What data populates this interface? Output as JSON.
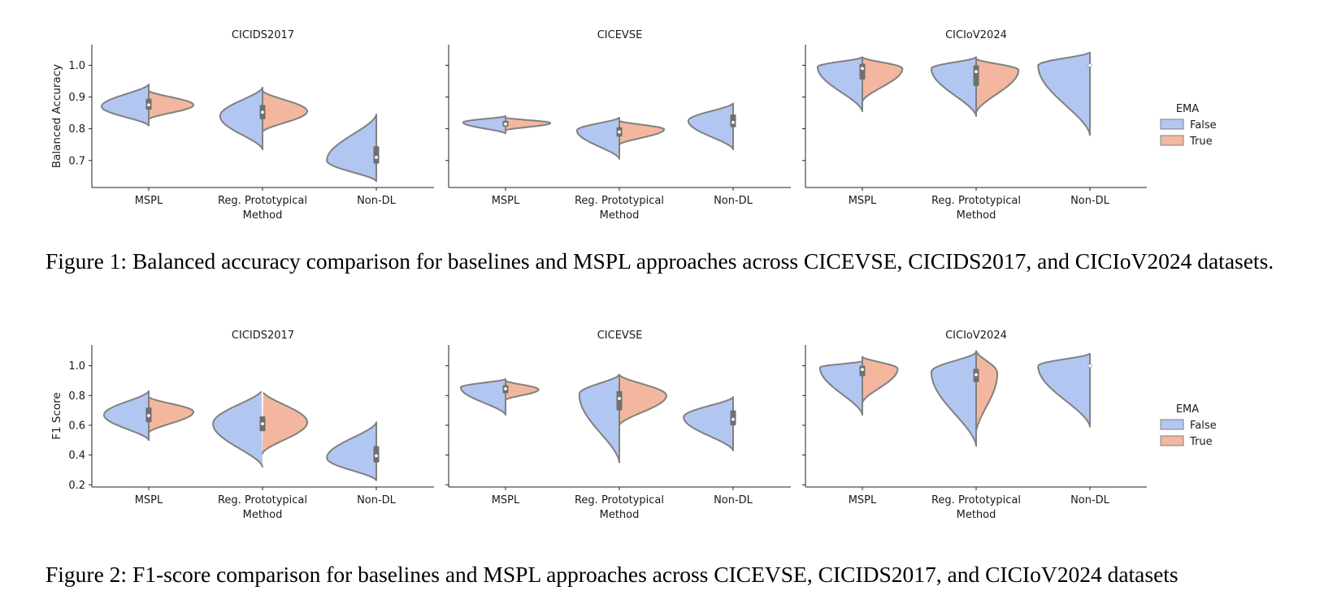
{
  "chart_data": [
    {
      "type": "violin",
      "split_by": "EMA",
      "ylabel": "Balanced Accuracy",
      "xlabel": "Method",
      "yticks": [
        "0.7",
        "0.8",
        "0.9",
        "1.0"
      ],
      "ylim": [
        0.615,
        1.065
      ],
      "legend": {
        "title": "EMA",
        "entries": [
          "False",
          "True"
        ],
        "placement": "right"
      },
      "colors": {
        "False": "#b2c6f2",
        "True": "#f2b79e",
        "edge": "#808080",
        "box": "#6f6f6f"
      },
      "categories": [
        "MSPL",
        "Reg. Prototypical",
        "Non-DL"
      ],
      "panels": [
        {
          "title": "CICIDS2017",
          "violins": [
            {
              "cat": 0,
              "False": {
                "min": 0.81,
                "max": 0.94,
                "mode": 0.87,
                "width": 1.0
              },
              "True": {
                "min": 0.83,
                "max": 0.92,
                "mode": 0.875,
                "width": 0.95
              },
              "q1": 0.86,
              "median": 0.875,
              "q3": 0.895
            },
            {
              "cat": 1,
              "False": {
                "min": 0.735,
                "max": 0.93,
                "mode": 0.84,
                "width": 0.9
              },
              "True": {
                "min": 0.79,
                "max": 0.92,
                "mode": 0.855,
                "width": 0.95
              },
              "q1": 0.83,
              "median": 0.852,
              "q3": 0.875
            },
            {
              "cat": 2,
              "False": {
                "min": 0.635,
                "max": 0.845,
                "mode": 0.7,
                "width": 1.05
              },
              "True": null,
              "q1": 0.69,
              "median": 0.71,
              "q3": 0.745
            }
          ]
        },
        {
          "title": "CICEVSE",
          "violins": [
            {
              "cat": 0,
              "False": {
                "min": 0.785,
                "max": 0.84,
                "mode": 0.82,
                "width": 0.9
              },
              "True": {
                "min": 0.795,
                "max": 0.835,
                "mode": 0.818,
                "width": 0.95
              },
              "q1": 0.807,
              "median": 0.815,
              "q3": 0.825
            },
            {
              "cat": 1,
              "False": {
                "min": 0.705,
                "max": 0.835,
                "mode": 0.795,
                "width": 0.9
              },
              "True": {
                "min": 0.75,
                "max": 0.825,
                "mode": 0.798,
                "width": 0.95
              },
              "q1": 0.775,
              "median": 0.79,
              "q3": 0.805
            },
            {
              "cat": 2,
              "False": {
                "min": 0.735,
                "max": 0.88,
                "mode": 0.825,
                "width": 0.95
              },
              "True": null,
              "q1": 0.805,
              "median": 0.82,
              "q3": 0.845
            }
          ]
        },
        {
          "title": "CICIoV2024",
          "violins": [
            {
              "cat": 0,
              "False": {
                "min": 0.855,
                "max": 1.025,
                "mode": 0.995,
                "width": 0.95
              },
              "True": {
                "min": 0.885,
                "max": 1.025,
                "mode": 0.99,
                "width": 0.85
              },
              "q1": 0.955,
              "median": 0.99,
              "q3": 1.005
            },
            {
              "cat": 1,
              "False": {
                "min": 0.84,
                "max": 1.025,
                "mode": 0.99,
                "width": 0.95
              },
              "True": {
                "min": 0.85,
                "max": 1.02,
                "mode": 0.985,
                "width": 0.9
              },
              "q1": 0.935,
              "median": 0.98,
              "q3": 1.0
            },
            {
              "cat": 2,
              "False": {
                "min": 0.78,
                "max": 1.04,
                "mode": 1.0,
                "width": 1.1
              },
              "True": null,
              "q1": 1.0,
              "median": 1.0,
              "q3": 1.0
            }
          ]
        }
      ]
    },
    {
      "type": "violin",
      "split_by": "EMA",
      "ylabel": "F1 Score",
      "xlabel": "Method",
      "yticks": [
        "0.2",
        "0.4",
        "0.6",
        "0.8",
        "1.0"
      ],
      "ylim": [
        0.185,
        1.14
      ],
      "legend": {
        "title": "EMA",
        "entries": [
          "False",
          "True"
        ],
        "placement": "right"
      },
      "colors": {
        "False": "#b2c6f2",
        "True": "#f2b79e",
        "edge": "#808080",
        "box": "#6f6f6f"
      },
      "categories": [
        "MSPL",
        "Reg. Prototypical",
        "Non-DL"
      ],
      "panels": [
        {
          "title": "CICIDS2017",
          "violins": [
            {
              "cat": 0,
              "False": {
                "min": 0.5,
                "max": 0.83,
                "mode": 0.67,
                "width": 0.95
              },
              "True": {
                "min": 0.55,
                "max": 0.79,
                "mode": 0.69,
                "width": 0.95
              },
              "q1": 0.62,
              "median": 0.665,
              "q3": 0.72
            },
            {
              "cat": 1,
              "False": {
                "min": 0.32,
                "max": 0.84,
                "mode": 0.61,
                "width": 1.05
              },
              "True": {
                "min": 0.41,
                "max": 0.83,
                "mode": 0.62,
                "width": 0.95
              },
              "q1": 0.56,
              "median": 0.61,
              "q3": 0.66
            },
            {
              "cat": 2,
              "False": {
                "min": 0.23,
                "max": 0.62,
                "mode": 0.38,
                "width": 1.05
              },
              "True": null,
              "q1": 0.35,
              "median": 0.395,
              "q3": 0.46
            }
          ]
        },
        {
          "title": "CICEVSE",
          "violins": [
            {
              "cat": 0,
              "False": {
                "min": 0.67,
                "max": 0.91,
                "mode": 0.855,
                "width": 0.95
              },
              "True": {
                "min": 0.77,
                "max": 0.9,
                "mode": 0.84,
                "width": 0.7
              },
              "q1": 0.815,
              "median": 0.845,
              "q3": 0.87
            },
            {
              "cat": 1,
              "False": {
                "min": 0.35,
                "max": 0.94,
                "mode": 0.81,
                "width": 0.85
              },
              "True": {
                "min": 0.6,
                "max": 0.94,
                "mode": 0.8,
                "width": 1.0
              },
              "q1": 0.7,
              "median": 0.78,
              "q3": 0.83
            },
            {
              "cat": 2,
              "False": {
                "min": 0.43,
                "max": 0.79,
                "mode": 0.655,
                "width": 1.05
              },
              "True": null,
              "q1": 0.6,
              "median": 0.64,
              "q3": 0.7
            }
          ]
        },
        {
          "title": "CICIoV2024",
          "violins": [
            {
              "cat": 0,
              "False": {
                "min": 0.67,
                "max": 1.03,
                "mode": 0.99,
                "width": 0.9
              },
              "True": {
                "min": 0.75,
                "max": 1.06,
                "mode": 0.98,
                "width": 0.75
              },
              "q1": 0.93,
              "median": 0.975,
              "q3": 1.0
            },
            {
              "cat": 1,
              "False": {
                "min": 0.46,
                "max": 1.09,
                "mode": 0.96,
                "width": 0.95
              },
              "True": {
                "min": 0.55,
                "max": 1.1,
                "mode": 0.95,
                "width": 0.45
              },
              "q1": 0.89,
              "median": 0.94,
              "q3": 0.98
            },
            {
              "cat": 2,
              "False": {
                "min": 0.59,
                "max": 1.08,
                "mode": 1.0,
                "width": 1.1
              },
              "True": null,
              "q1": 1.0,
              "median": 1.0,
              "q3": 1.0
            }
          ]
        }
      ]
    }
  ],
  "captions": {
    "figure1": "Figure 1: Balanced accuracy comparison for baselines and MSPL approaches across CICEVSE, CICIDS2017, and CICIoV2024 datasets.",
    "figure2": "Figure 2: F1-score comparison for baselines and MSPL approaches across CICEVSE, CICIDS2017, and CICIoV2024 datasets"
  }
}
